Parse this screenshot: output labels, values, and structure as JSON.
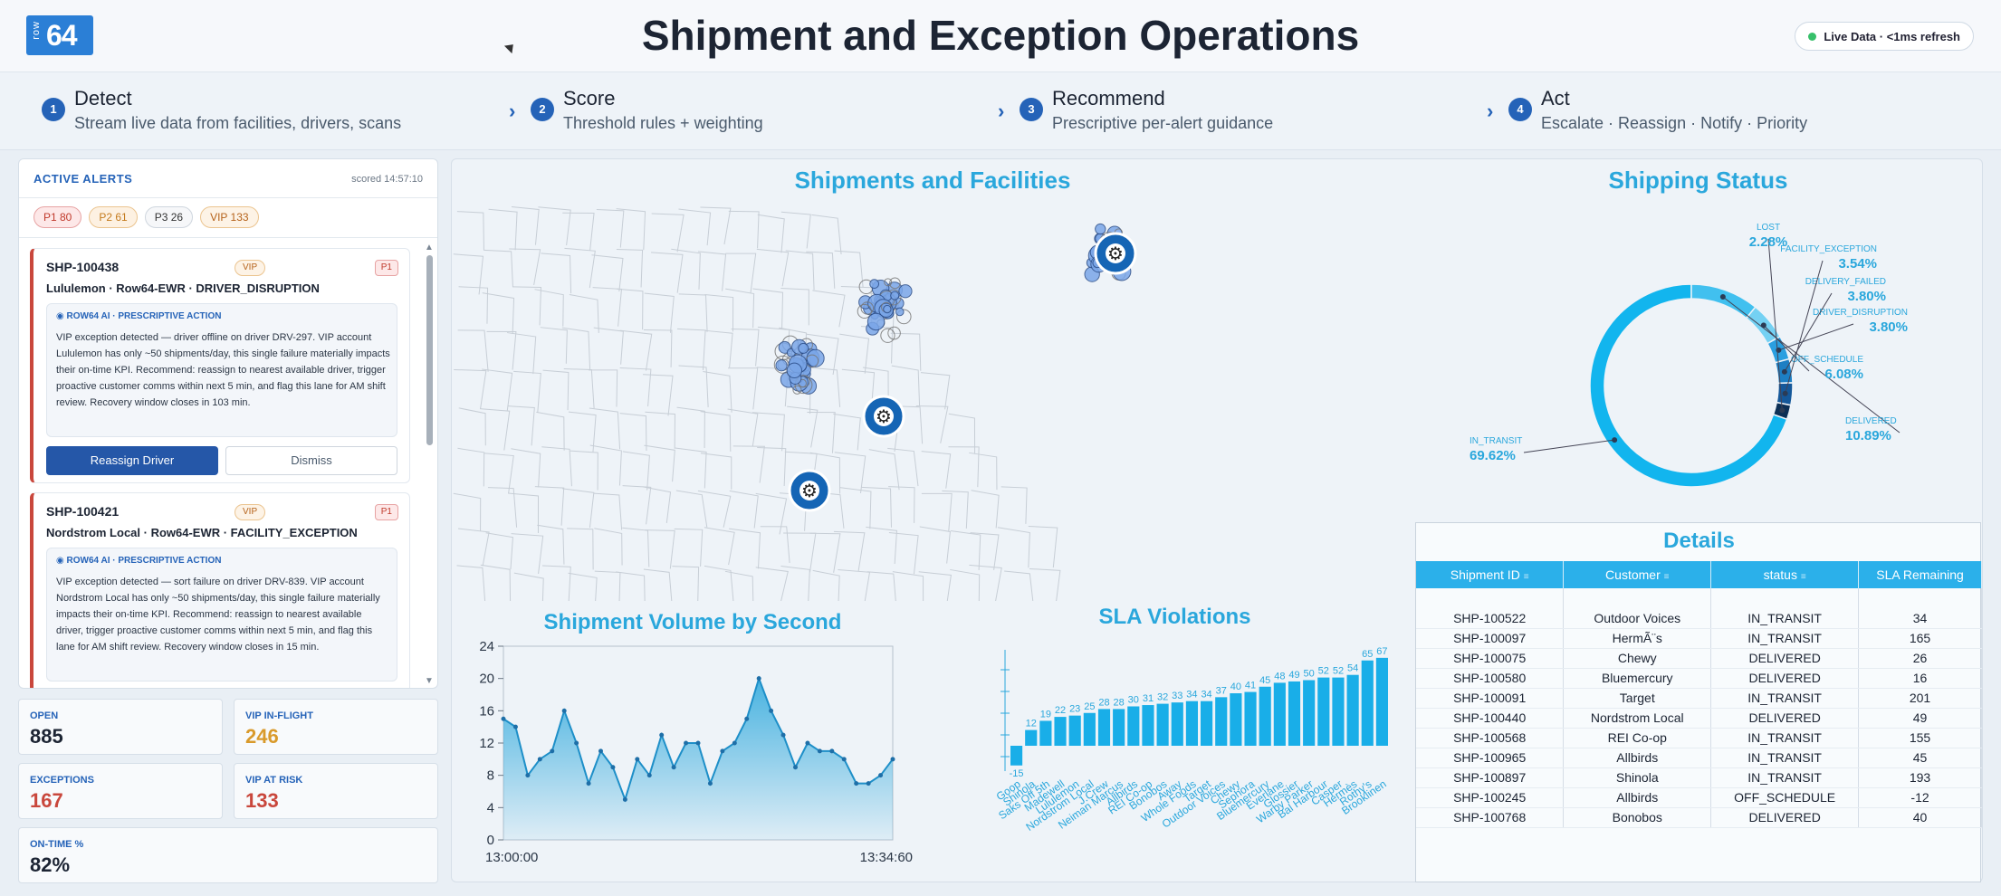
{
  "header": {
    "logo_small": "row",
    "logo_big": "64",
    "title": "Shipment and Exception Operations",
    "live_badge": "Live Data · <1ms refresh"
  },
  "steps": [
    {
      "num": "1",
      "title": "Detect",
      "desc": "Stream live data from facilities, drivers, scans"
    },
    {
      "num": "2",
      "title": "Score",
      "desc": "Threshold rules + weighting"
    },
    {
      "num": "3",
      "title": "Recommend",
      "desc": "Prescriptive per-alert guidance"
    },
    {
      "num": "4",
      "title": "Act",
      "desc": "Escalate · Reassign · Notify · Priority"
    }
  ],
  "alerts": {
    "heading": "ACTIVE ALERTS",
    "scored": "scored 14:57:10",
    "pills": {
      "p1": "P1 80",
      "p2": "P2 61",
      "p3": "P3 26",
      "vip": "VIP 133"
    },
    "cards": [
      {
        "id": "SHP-100438",
        "vip": "VIP",
        "priority": "P1",
        "subtitle": "Lululemon · Row64-EWR · DRIVER_DISRUPTION",
        "ai_heading": "◉ ROW64 AI · PRESCRIPTIVE ACTION",
        "ai_text": "VIP exception detected — driver offline on driver DRV-297. VIP account Lululemon has only ~50 shipments/day, this single failure materially impacts their on-time KPI. Recommend: reassign to nearest available driver, trigger proactive customer comms within next 5 min, and flag this lane for AM shift review. Recovery window closes in 103 min.",
        "primary_btn": "Reassign Driver",
        "secondary_btn": "Dismiss"
      },
      {
        "id": "SHP-100421",
        "vip": "VIP",
        "priority": "P1",
        "subtitle": "Nordstrom Local · Row64-EWR · FACILITY_EXCEPTION",
        "ai_heading": "◉ ROW64 AI · PRESCRIPTIVE ACTION",
        "ai_text": "VIP exception detected — sort failure on driver DRV-839. VIP account Nordstrom Local has only ~50 shipments/day, this single failure materially impacts their on-time KPI. Recommend: reassign to nearest available driver, trigger proactive customer comms within next 5 min, and flag this lane for AM shift review. Recovery window closes in 15 min."
      }
    ]
  },
  "kpis": {
    "open": {
      "label": "OPEN",
      "value": "885",
      "color": "#1c2433"
    },
    "vip_inflight": {
      "label": "VIP IN-FLIGHT",
      "value": "246",
      "color": "#d99a2b"
    },
    "exceptions": {
      "label": "EXCEPTIONS",
      "value": "167",
      "color": "#c9473c"
    },
    "vip_atrisk": {
      "label": "VIP AT RISK",
      "value": "133",
      "color": "#c9473c"
    },
    "ontime": {
      "label": "ON-TIME %",
      "value": "82%",
      "color": "#1c2433"
    }
  },
  "map": {
    "title": "Shipments and Facilities"
  },
  "status": {
    "title": "Shipping Status",
    "slices": [
      {
        "label": "IN_TRANSIT",
        "pct": "69.62%",
        "value": 69.62,
        "color": "#12b5ee"
      },
      {
        "label": "DELIVERED",
        "pct": "10.89%",
        "value": 10.89,
        "color": "#41c0ef"
      },
      {
        "label": "OFF_SCHEDULE",
        "pct": "6.08%",
        "value": 6.08,
        "color": "#74d1f3"
      },
      {
        "label": "DRIVER_DISRUPTION",
        "pct": "3.80%",
        "value": 3.8,
        "color": "#2a9fe0"
      },
      {
        "label": "DELIVERY_FAILED",
        "pct": "3.80%",
        "value": 3.8,
        "color": "#1d7fc4"
      },
      {
        "label": "FACILITY_EXCEPTION",
        "pct": "3.54%",
        "value": 3.54,
        "color": "#15589a"
      },
      {
        "label": "LOST",
        "pct": "2.28%",
        "value": 2.28,
        "color": "#0c2f55"
      }
    ]
  },
  "chart_data": [
    {
      "type": "area",
      "title": "Shipment Volume by Second",
      "ylim": [
        0,
        24
      ],
      "yticks": [
        "0",
        "4",
        "8",
        "12",
        "16",
        "20",
        "24"
      ],
      "x_start_label": "13:00:00",
      "x_end_label": "13:34:60",
      "values": [
        15,
        14,
        8,
        10,
        11,
        16,
        12,
        7,
        11,
        9,
        5,
        10,
        8,
        13,
        9,
        12,
        12,
        7,
        11,
        12,
        15,
        20,
        16,
        13,
        9,
        12,
        11,
        11,
        10,
        7,
        7,
        8,
        10
      ]
    },
    {
      "type": "bar",
      "title": "SLA Violations",
      "data_labels": [
        "-15",
        "12",
        "19",
        "22",
        "23",
        "25",
        "28",
        "28",
        "30",
        "31",
        "32",
        "33",
        "34",
        "34",
        "37",
        "40",
        "41",
        "45",
        "48",
        "49",
        "50",
        "52",
        "52",
        "54",
        "65",
        "67"
      ],
      "values": [
        -15,
        12,
        19,
        22,
        23,
        25,
        28,
        28,
        30,
        31,
        32,
        33,
        34,
        34,
        37,
        40,
        41,
        45,
        48,
        49,
        50,
        52,
        52,
        54,
        65,
        67
      ],
      "categories": [
        "Goop",
        "Shinola",
        "Saks Off 5th",
        "Madewell",
        "Lululemon",
        "Nordstrom Local",
        "J.Crew",
        "Neiman Marcus",
        "Allbirds",
        "REI Co-op",
        "Bonobos",
        "Away",
        "Whole Foods",
        "Target",
        "Outdoor Voices",
        "Chewy",
        "Sephora",
        "Bluemercury",
        "Everlane",
        "Glossier",
        "Warby Parker",
        "Bal Harbour",
        "Casper",
        "Hermès",
        "Rothy's",
        "Brooklinen"
      ]
    }
  ],
  "sla": {
    "title": "SLA Violations"
  },
  "volume": {
    "title": "Shipment Volume by Second"
  },
  "details": {
    "title": "Details",
    "columns": [
      "Shipment ID",
      "Customer",
      "status",
      "SLA Remaining"
    ],
    "rows": [
      [
        "SHP-100522",
        "Outdoor Voices",
        "IN_TRANSIT",
        "34"
      ],
      [
        "SHP-100097",
        "HermÃ¨s",
        "IN_TRANSIT",
        "165"
      ],
      [
        "SHP-100075",
        "Chewy",
        "DELIVERED",
        "26"
      ],
      [
        "SHP-100580",
        "Bluemercury",
        "DELIVERED",
        "16"
      ],
      [
        "SHP-100091",
        "Target",
        "IN_TRANSIT",
        "201"
      ],
      [
        "SHP-100440",
        "Nordstrom Local",
        "DELIVERED",
        "49"
      ],
      [
        "SHP-100568",
        "REI Co-op",
        "IN_TRANSIT",
        "155"
      ],
      [
        "SHP-100965",
        "Allbirds",
        "IN_TRANSIT",
        "45"
      ],
      [
        "SHP-100897",
        "Shinola",
        "IN_TRANSIT",
        "193"
      ],
      [
        "SHP-100245",
        "Allbirds",
        "OFF_SCHEDULE",
        "-12"
      ],
      [
        "SHP-100768",
        "Bonobos",
        "DELIVERED",
        "40"
      ]
    ]
  }
}
